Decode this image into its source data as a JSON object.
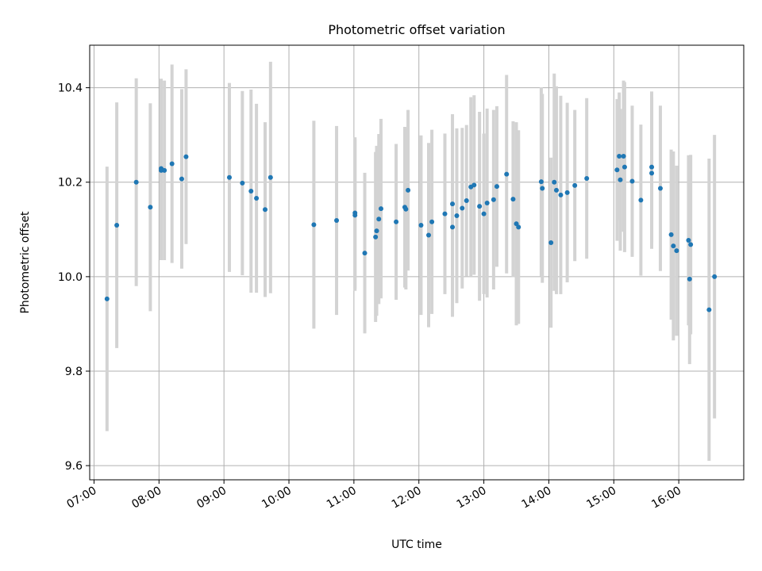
{
  "chart_data": {
    "type": "scatter",
    "title": "Photometric offset variation",
    "xlabel": "UTC time",
    "ylabel": "Photometric offset",
    "xlim": [
      "06:56",
      "17:00"
    ],
    "ylim": [
      9.57,
      10.49
    ],
    "grid": true,
    "x_ticks": [
      "07:00",
      "08:00",
      "09:00",
      "10:00",
      "11:00",
      "12:00",
      "13:00",
      "14:00",
      "15:00",
      "16:00"
    ],
    "y_ticks": [
      "9.6",
      "9.8",
      "10.0",
      "10.2",
      "10.4"
    ],
    "colors": {
      "point": "#1f77b4",
      "errorbar": "#d3d3d3",
      "grid": "#b0b0b0"
    },
    "series": [
      {
        "x": [
          "07:12",
          "07:21",
          "07:52",
          "08:02",
          "08:02",
          "08:05",
          "08:12",
          "08:21",
          "08:25",
          "07:39",
          "09:05",
          "09:17",
          "09:25",
          "09:30",
          "09:38",
          "09:43",
          "10:23",
          "10:44",
          "11:01",
          "11:01",
          "11:10",
          "11:20",
          "11:21",
          "11:23",
          "11:25",
          "11:39",
          "11:47",
          "11:48",
          "11:50",
          "12:02",
          "12:09",
          "12:12",
          "12:24",
          "12:31",
          "12:31",
          "12:35",
          "12:40",
          "12:44",
          "12:48",
          "12:51",
          "12:56",
          "13:00",
          "13:03",
          "13:09",
          "13:12",
          "13:21",
          "13:27",
          "13:30",
          "13:32",
          "13:53",
          "13:54",
          "14:02",
          "14:05",
          "14:07",
          "14:11",
          "14:17",
          "14:24",
          "14:35",
          "15:03",
          "15:05",
          "15:06",
          "15:09",
          "15:10",
          "15:17",
          "15:25",
          "15:35",
          "15:35",
          "15:43",
          "15:53",
          "15:55",
          "15:58",
          "16:09",
          "16:10",
          "16:11",
          "16:28",
          "16:33"
        ],
        "y": [
          9.953,
          10.109,
          10.147,
          10.229,
          10.225,
          10.225,
          10.239,
          10.207,
          10.254,
          10.2,
          10.21,
          10.198,
          10.181,
          10.166,
          10.142,
          10.21,
          10.11,
          10.119,
          10.135,
          10.13,
          10.05,
          10.084,
          10.097,
          10.122,
          10.144,
          10.116,
          10.147,
          10.143,
          10.183,
          10.109,
          10.088,
          10.116,
          10.133,
          10.154,
          10.105,
          10.129,
          10.145,
          10.161,
          10.19,
          10.194,
          10.149,
          10.133,
          10.156,
          10.163,
          10.191,
          10.217,
          10.164,
          10.112,
          10.105,
          10.201,
          10.187,
          10.072,
          10.2,
          10.183,
          10.173,
          10.178,
          10.193,
          10.208,
          10.226,
          10.255,
          10.205,
          10.255,
          10.232,
          10.202,
          10.162,
          10.232,
          10.219,
          10.187,
          10.089,
          10.065,
          10.055,
          10.077,
          9.995,
          10.068,
          9.93,
          10.0
        ],
        "y_err": [
          0.28,
          0.26,
          0.22,
          0.19,
          0.19,
          0.19,
          0.21,
          0.19,
          0.185,
          0.22,
          0.2,
          0.195,
          0.215,
          0.2,
          0.185,
          0.245,
          0.22,
          0.2,
          0.16,
          0.16,
          0.17,
          0.18,
          0.18,
          0.18,
          0.19,
          0.165,
          0.17,
          0.17,
          0.17,
          0.19,
          0.195,
          0.195,
          0.17,
          0.19,
          0.19,
          0.185,
          0.17,
          0.16,
          0.19,
          0.19,
          0.2,
          0.17,
          0.2,
          0.19,
          0.17,
          0.21,
          0.165,
          0.215,
          0.205,
          0.2,
          0.2,
          0.18,
          0.23,
          0.22,
          0.21,
          0.19,
          0.16,
          0.17,
          0.15,
          0.135,
          0.15,
          0.16,
          0.18,
          0.16,
          0.16,
          0.16,
          0.16,
          0.175,
          0.18,
          0.2,
          0.18,
          0.18,
          0.18,
          0.19,
          0.32,
          0.3
        ]
      }
    ]
  }
}
